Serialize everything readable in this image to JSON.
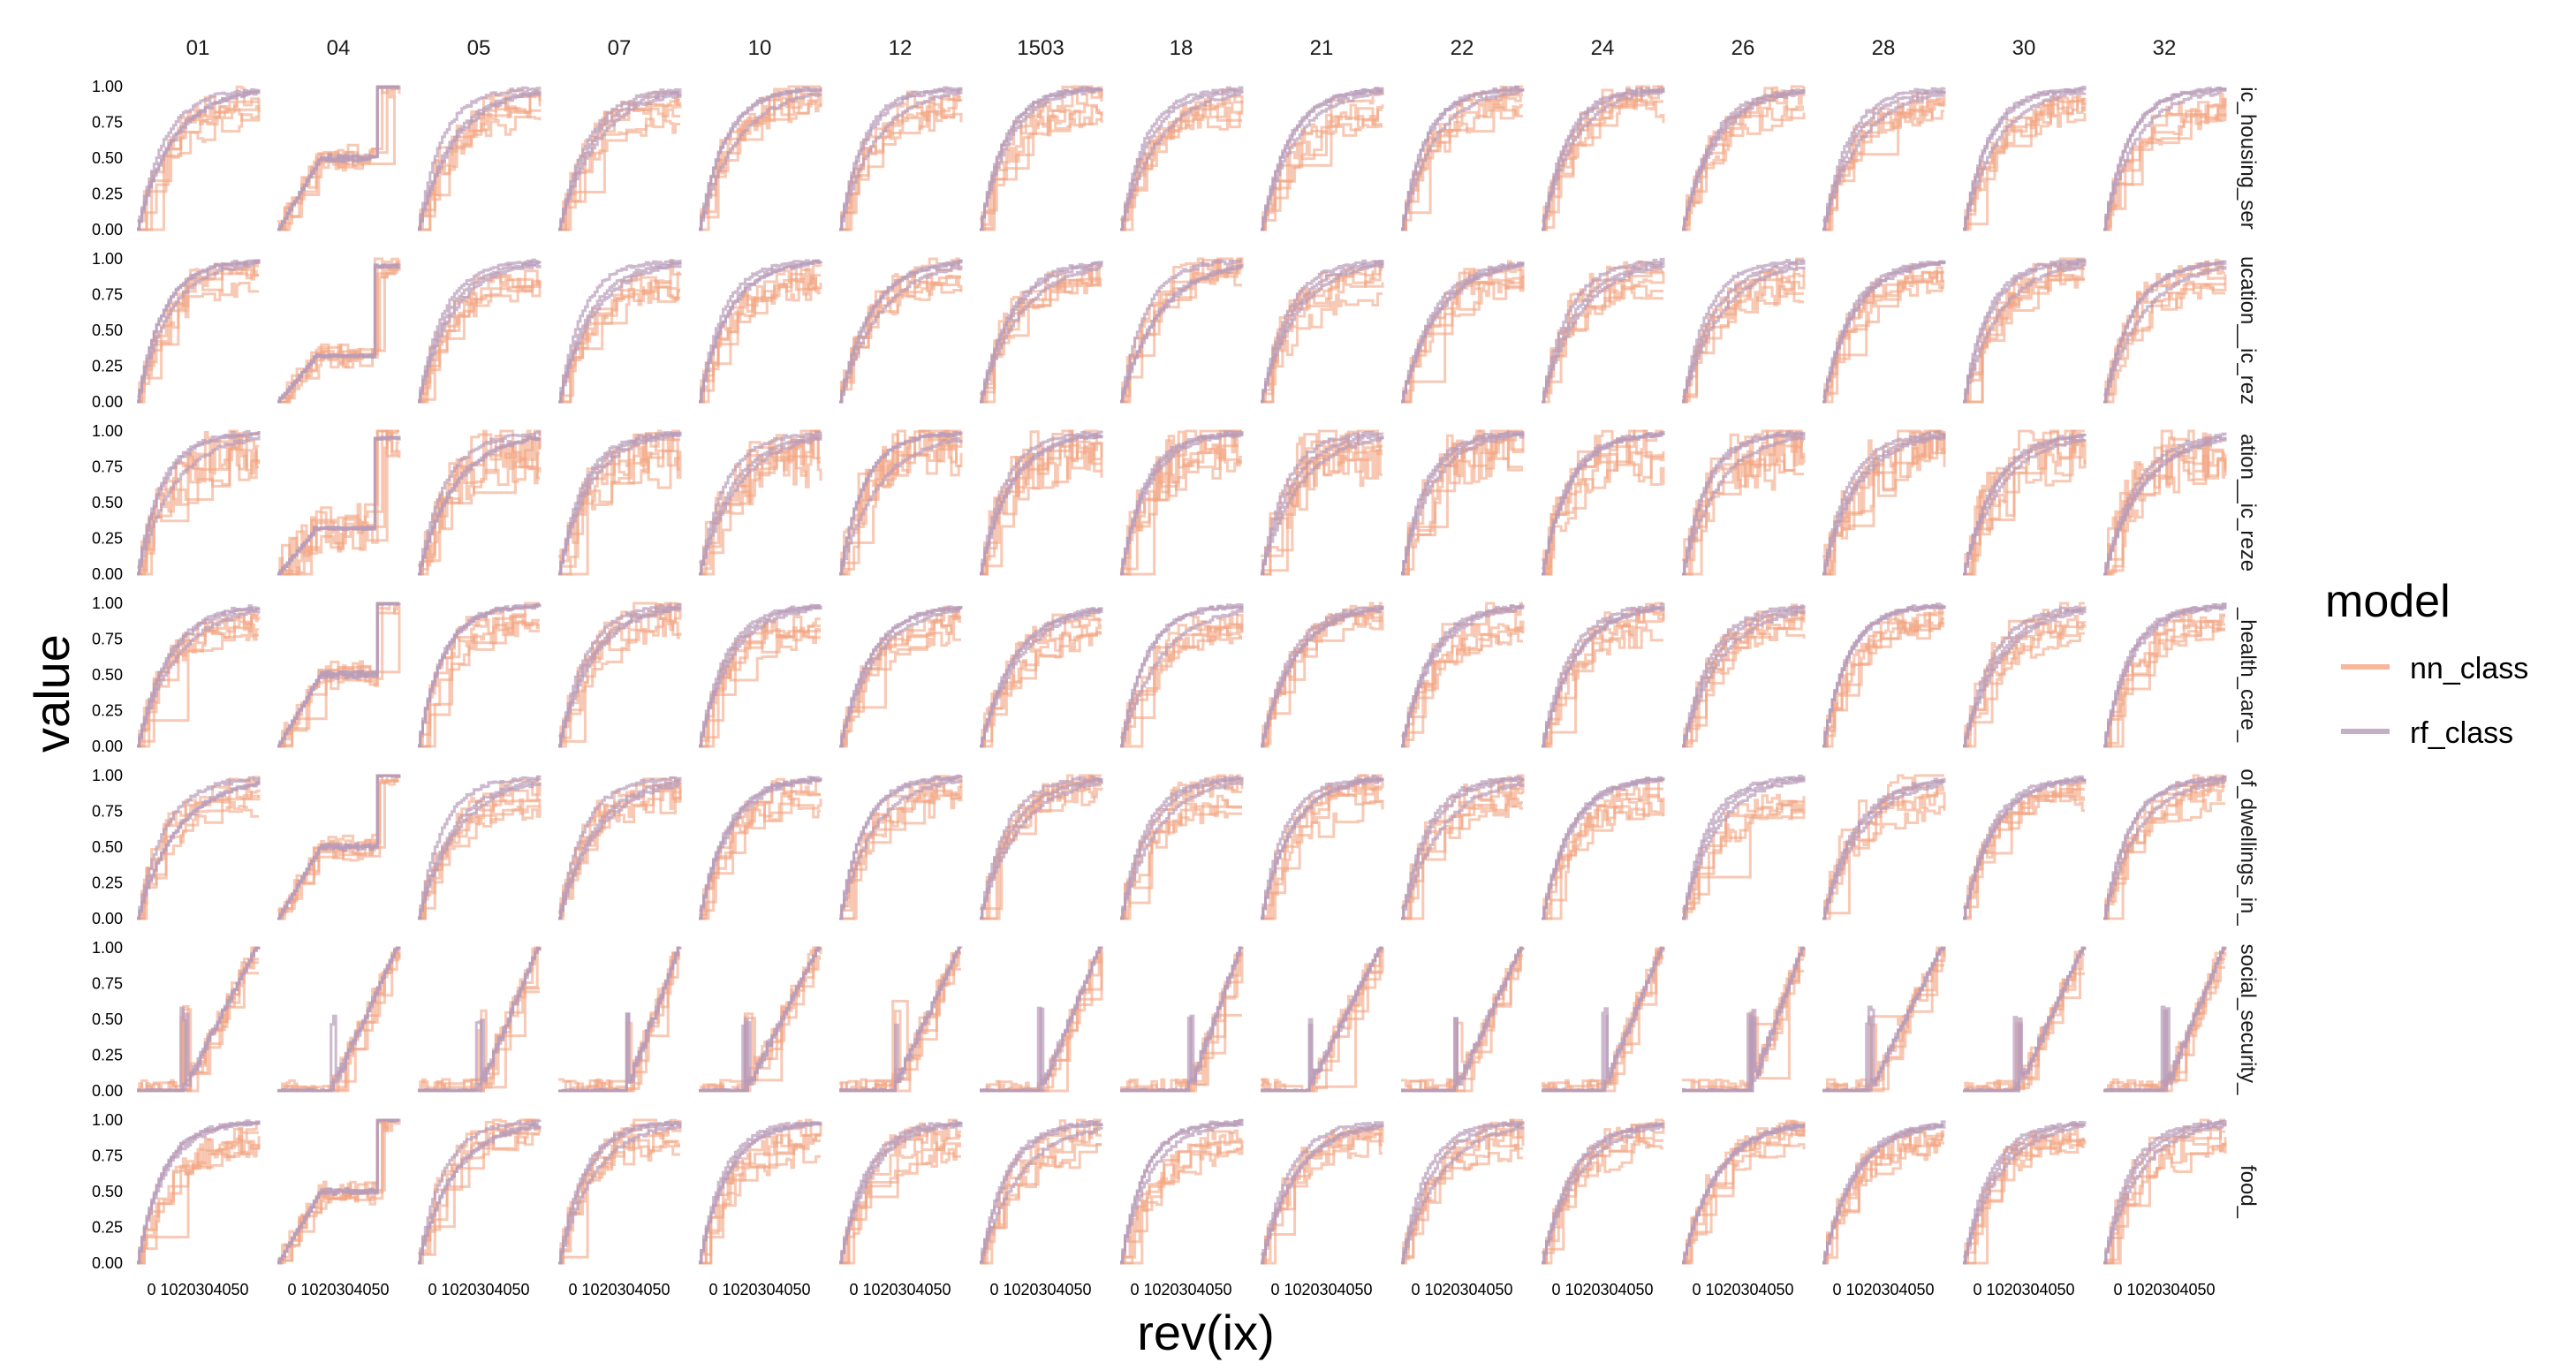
{
  "chart_data": {
    "type": "line",
    "facet_columns": [
      "01",
      "04",
      "05",
      "07",
      "10",
      "12",
      "1503",
      "18",
      "21",
      "22",
      "24",
      "26",
      "28",
      "30",
      "32"
    ],
    "facet_rows": [
      "ic_housing_ser",
      "ucation__ic_rez",
      "ation__ic_reze",
      "_health_care_",
      "of_dwellings_in_",
      "social_security_",
      "food_"
    ],
    "xlabel": "rev(ix)",
    "ylabel": "value",
    "x_tick_label": "0 1020304050",
    "y_ticks": [
      "0.00",
      "0.25",
      "0.50",
      "0.75",
      "1.00"
    ],
    "xlim": [
      0,
      50
    ],
    "ylim": [
      0,
      1
    ],
    "grid": false,
    "legend": {
      "title": "model",
      "placement": "right",
      "entries": [
        {
          "name": "nn_class",
          "color": "#f4a582"
        },
        {
          "name": "rf_class",
          "color": "#b89bb8"
        }
      ]
    },
    "series": [
      {
        "name": "nn_class",
        "color": "#f4a582",
        "lines_per_panel": 5
      },
      {
        "name": "rf_class",
        "color": "#b89bb8",
        "lines_per_panel": 3
      }
    ]
  }
}
